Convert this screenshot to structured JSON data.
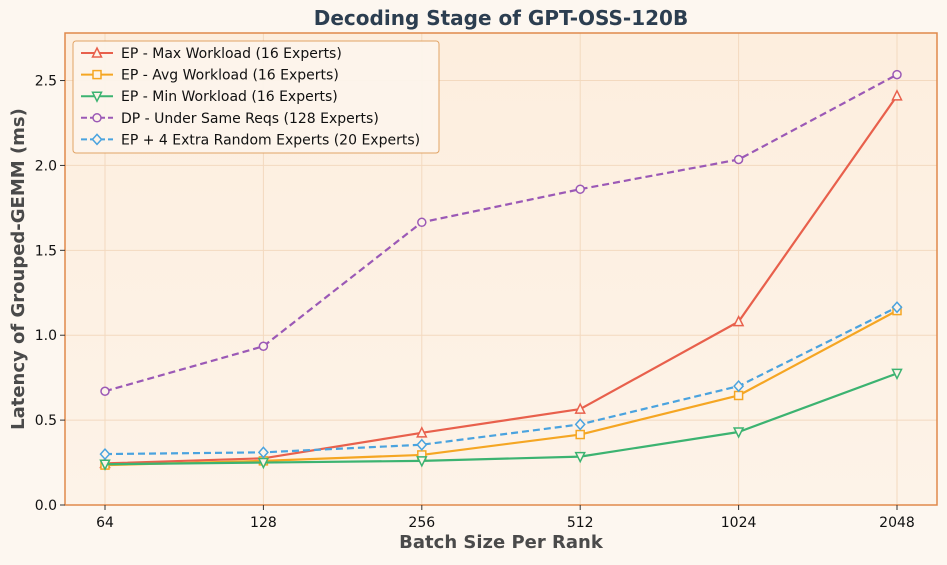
{
  "chart_data": {
    "type": "line",
    "title": "Decoding Stage of GPT-OSS-120B",
    "xlabel": "Batch Size Per Rank",
    "ylabel": "Latency of Grouped-GEMM (ms)",
    "categories": [
      "64",
      "128",
      "256",
      "512",
      "1024",
      "2048"
    ],
    "ylim": [
      0,
      2.78
    ],
    "yticks": [
      0.0,
      0.5,
      1.0,
      1.5,
      2.0,
      2.5
    ],
    "ytick_labels": [
      "0.0",
      "0.5",
      "1.0",
      "1.5",
      "2.0",
      "2.5"
    ],
    "grid": true,
    "legend_position": "upper-left",
    "series": [
      {
        "name": "EP - Max Workload (16 Experts)",
        "color": "#e8604c",
        "marker": "triangle-up",
        "dash": "solid",
        "values": [
          0.245,
          0.275,
          0.425,
          0.565,
          1.08,
          2.41
        ]
      },
      {
        "name": "EP - Avg Workload (16 Experts)",
        "color": "#f5a623",
        "marker": "square",
        "dash": "solid",
        "values": [
          0.235,
          0.26,
          0.295,
          0.415,
          0.645,
          1.145
        ]
      },
      {
        "name": "EP - Min Workload (16 Experts)",
        "color": "#3cb371",
        "marker": "triangle-down",
        "dash": "solid",
        "values": [
          0.24,
          0.25,
          0.26,
          0.285,
          0.43,
          0.775
        ]
      },
      {
        "name": "DP - Under Same Reqs (128 Experts)",
        "color": "#9b59b6",
        "marker": "circle",
        "dash": "dashed",
        "values": [
          0.67,
          0.935,
          1.665,
          1.86,
          2.035,
          2.535
        ]
      },
      {
        "name": "EP + 4 Extra Random Experts (20 Experts)",
        "color": "#4aa3df",
        "marker": "diamond",
        "dash": "dashed",
        "values": [
          0.3,
          0.31,
          0.355,
          0.475,
          0.7,
          1.165
        ]
      }
    ]
  }
}
